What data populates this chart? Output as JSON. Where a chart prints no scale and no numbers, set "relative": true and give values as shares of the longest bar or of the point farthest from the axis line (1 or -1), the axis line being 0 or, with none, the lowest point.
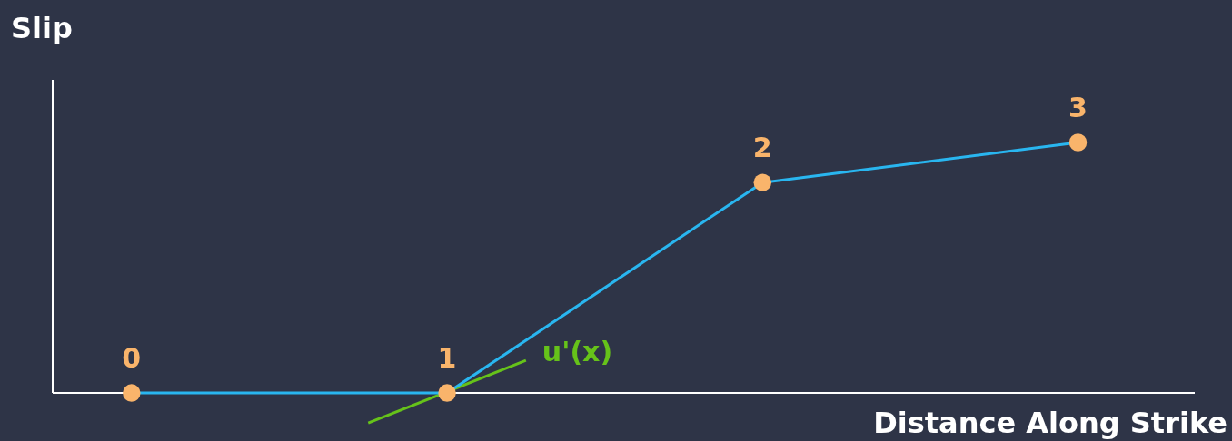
{
  "chart_data": {
    "type": "line",
    "relative": true,
    "xlabel": "Distance Along Strike",
    "ylabel": "Slip",
    "categories": [
      null,
      null,
      null,
      null
    ],
    "marker": "circle",
    "series": [
      {
        "color": "#29b6f0",
        "colors": [
          "#f9b46b",
          "#f9b46b",
          "#f9b46b",
          "#f9b46b"
        ],
        "values": [
          0,
          0,
          0.84,
          1
        ]
      }
    ],
    "annotations": [
      "0",
      "1",
      "2",
      "3",
      "u'(x)"
    ]
  }
}
